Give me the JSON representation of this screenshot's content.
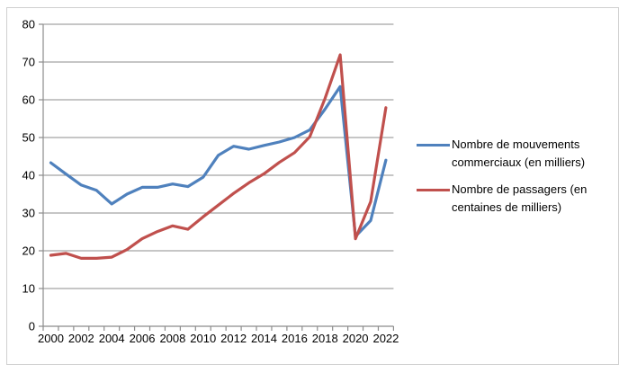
{
  "chart_data": {
    "type": "line",
    "x": [
      2000,
      2001,
      2002,
      2003,
      2004,
      2005,
      2006,
      2007,
      2008,
      2009,
      2010,
      2011,
      2012,
      2013,
      2014,
      2015,
      2016,
      2017,
      2018,
      2019,
      2020,
      2021,
      2022
    ],
    "series": [
      {
        "name": "Nombre de mouvements commerciaux (en milliers)",
        "color": "#4F81BD",
        "values": [
          43.3,
          40.3,
          37.4,
          36.0,
          32.4,
          35.0,
          36.8,
          36.8,
          37.7,
          37.0,
          39.5,
          45.3,
          47.7,
          46.9,
          47.9,
          48.8,
          50.0,
          52.0,
          57.5,
          63.5,
          23.8,
          28.0,
          44.0
        ]
      },
      {
        "name": "Nombre de passagers (en centaines de milliers)",
        "color": "#C0504D",
        "values": [
          18.8,
          19.3,
          18.0,
          18.0,
          18.3,
          20.3,
          23.2,
          25.1,
          26.6,
          25.7,
          29.0,
          32.1,
          35.2,
          38.0,
          40.4,
          43.4,
          46.0,
          50.2,
          60.3,
          71.9,
          23.2,
          33.0,
          57.9
        ]
      }
    ],
    "title": "",
    "xlabel": "",
    "ylabel": "",
    "ylim": [
      0,
      80
    ],
    "y_ticks": [
      0,
      10,
      20,
      30,
      40,
      50,
      60,
      70,
      80
    ],
    "x_tick_labels": [
      "2000",
      "2002",
      "2004",
      "2006",
      "2008",
      "2010",
      "2012",
      "2014",
      "2016",
      "2018",
      "2020",
      "2022"
    ],
    "grid": "horizontal",
    "legend_position": "right",
    "gridline_color": "#8C8C8C",
    "axis_color": "#8C8C8C",
    "tick_label_color": "#000000",
    "frame_border_color": "#D0D0D0",
    "background_color": "#FFFFFF"
  }
}
